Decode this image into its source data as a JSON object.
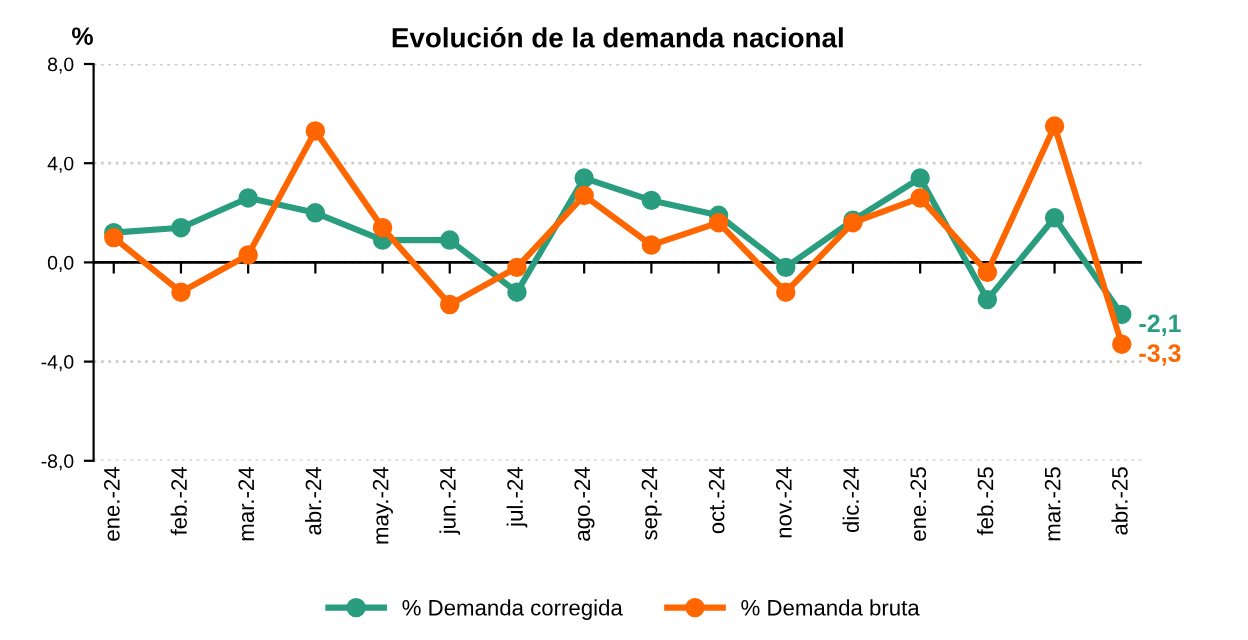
{
  "chart_data": {
    "type": "line",
    "title": "Evolución de la demanda nacional",
    "ylabel": "%",
    "categories": [
      "ene.-24",
      "feb.-24",
      "mar.-24",
      "abr.-24",
      "may.-24",
      "jun.-24",
      "jul.-24",
      "ago.-24",
      "sep.-24",
      "oct.-24",
      "nov.-24",
      "dic.-24",
      "ene.-25",
      "feb.-25",
      "mar.-25",
      "abr.-25"
    ],
    "series": [
      {
        "name": "% Demanda corregida",
        "color": "#2a9d7f",
        "values": [
          1.2,
          1.4,
          2.6,
          2.0,
          0.9,
          0.9,
          -1.2,
          3.4,
          2.5,
          1.9,
          -0.2,
          1.7,
          3.4,
          -1.5,
          1.8,
          -2.1
        ],
        "value_labels": [
          null,
          null,
          null,
          null,
          null,
          null,
          null,
          null,
          null,
          null,
          null,
          null,
          null,
          null,
          null,
          "-2,1"
        ]
      },
      {
        "name": "% Demanda bruta",
        "color": "#ff6600",
        "values": [
          1.0,
          -1.2,
          0.3,
          5.3,
          1.4,
          -1.7,
          -0.2,
          2.7,
          0.7,
          1.6,
          -1.2,
          1.6,
          2.6,
          -0.4,
          5.5,
          -3.3
        ],
        "value_labels": [
          null,
          null,
          null,
          null,
          null,
          null,
          null,
          null,
          null,
          null,
          null,
          null,
          null,
          null,
          null,
          "-3,3"
        ]
      }
    ],
    "ylim": [
      -8,
      8
    ],
    "yticks": [
      {
        "value": -8,
        "label": "-8,0"
      },
      {
        "value": -4,
        "label": "-4,0"
      },
      {
        "value": 0,
        "label": "0,0"
      },
      {
        "value": 4,
        "label": "4,0"
      },
      {
        "value": 8,
        "label": "8,0"
      }
    ],
    "grid": "y",
    "legend": "bottom",
    "marker": "circle",
    "line_style": "solid"
  }
}
